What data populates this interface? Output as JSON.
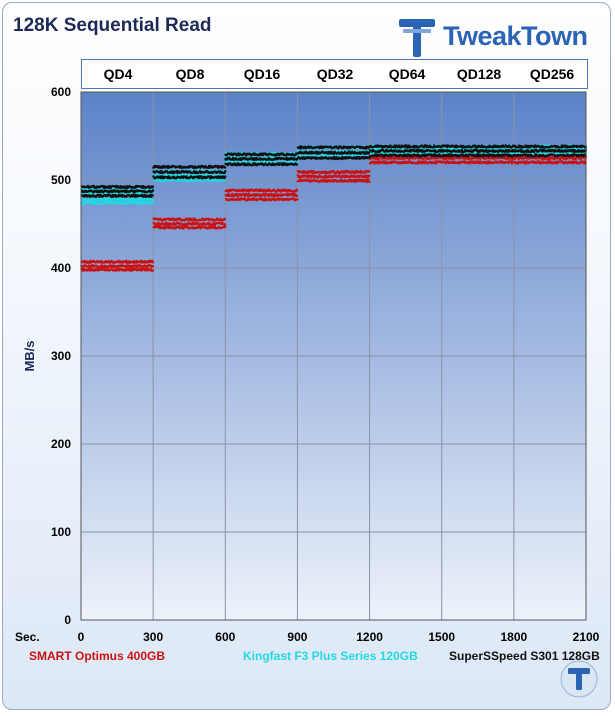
{
  "header": {
    "title": "128K Sequential Read",
    "logo_text": "TweakTown"
  },
  "qd_labels": [
    "QD4",
    "QD8",
    "QD16",
    "QD32",
    "QD64",
    "QD128",
    "QD256"
  ],
  "colors": {
    "plot_top": "#5b82c8",
    "plot_bottom": "#eef3fb",
    "smart": "#cc1111",
    "kingfast": "#22d8e2",
    "superspeed": "#111111",
    "brand": "#2b64b4"
  },
  "chart_data": {
    "type": "scatter",
    "title": "128K Sequential Read",
    "xlabel": "Sec.",
    "ylabel": "MB/s",
    "xlim": [
      0,
      2100
    ],
    "ylim": [
      0,
      600
    ],
    "x_ticks": [
      "0",
      "300",
      "600",
      "900",
      "1200",
      "1500",
      "1800",
      "2100"
    ],
    "y_ticks": [
      "0",
      "100",
      "200",
      "300",
      "400",
      "500",
      "600"
    ],
    "grid": true,
    "legend_position": "bottom",
    "segments": [
      {
        "label": "QD4",
        "x_range": [
          0,
          300
        ]
      },
      {
        "label": "QD8",
        "x_range": [
          300,
          600
        ]
      },
      {
        "label": "QD16",
        "x_range": [
          600,
          900
        ]
      },
      {
        "label": "QD32",
        "x_range": [
          900,
          1200
        ]
      },
      {
        "label": "QD64",
        "x_range": [
          1200,
          1500
        ]
      },
      {
        "label": "QD128",
        "x_range": [
          1500,
          1800
        ]
      },
      {
        "label": "QD256",
        "x_range": [
          1800,
          2100
        ]
      }
    ],
    "series": [
      {
        "name": "SMART Optimus 400GB",
        "color": "#cc1111",
        "levels": [
          {
            "x_range": [
              0,
              300
            ],
            "y_values": [
              398,
              402,
              407
            ]
          },
          {
            "x_range": [
              300,
              600
            ],
            "y_values": [
              446,
              450,
              455
            ]
          },
          {
            "x_range": [
              600,
              900
            ],
            "y_values": [
              478,
              483,
              488
            ]
          },
          {
            "x_range": [
              900,
              1200
            ],
            "y_values": [
              499,
              504,
              509
            ]
          },
          {
            "x_range": [
              1200,
              2100
            ],
            "y_values": [
              520,
              525,
              530,
              535
            ]
          }
        ]
      },
      {
        "name": "Kingfast  F3 Plus Series 120GB",
        "color": "#22d8e2",
        "levels": [
          {
            "x_range": [
              0,
              300
            ],
            "y_values": [
              474,
              478,
              485,
              490
            ]
          },
          {
            "x_range": [
              300,
              600
            ],
            "y_values": [
              500,
              505,
              510
            ]
          },
          {
            "x_range": [
              600,
              900
            ],
            "y_values": [
              520,
              525,
              530
            ]
          },
          {
            "x_range": [
              900,
              1200
            ],
            "y_values": [
              527,
              532,
              537
            ]
          },
          {
            "x_range": [
              1200,
              2100
            ],
            "y_values": [
              530,
              535,
              538
            ]
          }
        ]
      },
      {
        "name": "SuperSSpeed S301 128GB",
        "color": "#111111",
        "levels": [
          {
            "x_range": [
              0,
              300
            ],
            "y_values": [
              482,
              487,
              492
            ]
          },
          {
            "x_range": [
              300,
              600
            ],
            "y_values": [
              503,
              509,
              515
            ]
          },
          {
            "x_range": [
              600,
              900
            ],
            "y_values": [
              518,
              524,
              529
            ]
          },
          {
            "x_range": [
              900,
              1200
            ],
            "y_values": [
              525,
              531,
              537
            ]
          },
          {
            "x_range": [
              1200,
              2100
            ],
            "y_values": [
              528,
              533,
              538
            ]
          }
        ]
      }
    ]
  }
}
